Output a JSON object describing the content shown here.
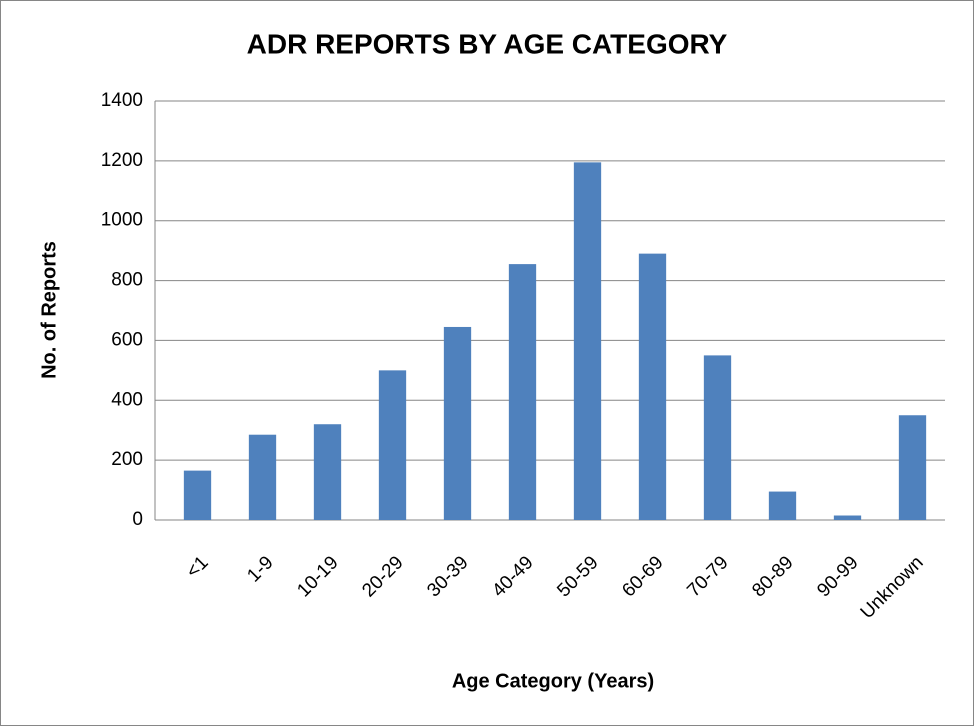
{
  "chart_data": {
    "type": "bar",
    "title": "ADR REPORTS BY AGE CATEGORY",
    "x_label": "Age Category (Years)",
    "y_label": "No. of Reports",
    "categories": [
      "<1",
      "1-9",
      "10-19",
      "20-29",
      "30-39",
      "40-49",
      "50-59",
      "60-69",
      "70-79",
      "80-89",
      "90-99",
      "Unknown"
    ],
    "values": [
      165,
      285,
      320,
      500,
      645,
      855,
      1195,
      890,
      550,
      95,
      15,
      350
    ],
    "color": "#4f81bd",
    "ylim": [
      0,
      1400
    ],
    "yticks": [
      0,
      200,
      400,
      600,
      800,
      1000,
      1200,
      1400
    ],
    "grid": true
  }
}
